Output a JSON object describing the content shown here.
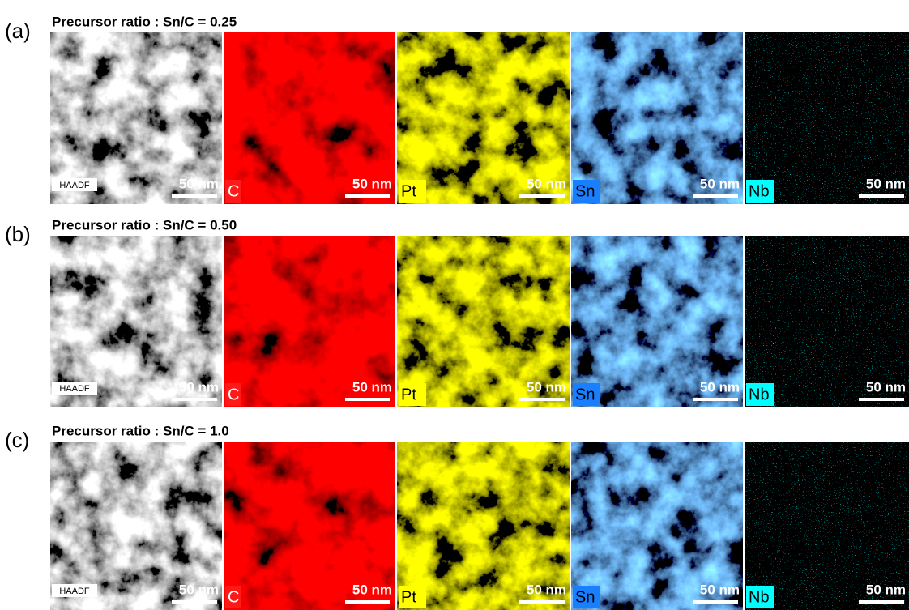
{
  "rows": [
    {
      "label": "(a)",
      "title": "Precursor ratio : Sn/C = 0.25",
      "panels": [
        {
          "label": "HAADF",
          "scale": "50 nm",
          "box_color": "#ffffff"
        },
        {
          "label": "C",
          "scale": "50 nm",
          "box_color": "#ff1a1a"
        },
        {
          "label": "Pt",
          "scale": "50 nm",
          "box_color": "#ffff00"
        },
        {
          "label": "Sn",
          "scale": "50 nm",
          "box_color": "#1a7fff"
        },
        {
          "label": "Nb",
          "scale": "50 nm",
          "box_color": "#00ffff"
        }
      ]
    },
    {
      "label": "(b)",
      "title": "Precursor ratio : Sn/C = 0.50",
      "panels": [
        {
          "label": "HAADF",
          "scale": "50 nm",
          "box_color": "#ffffff"
        },
        {
          "label": "C",
          "scale": "50 nm",
          "box_color": "#ff1a1a"
        },
        {
          "label": "Pt",
          "scale": "50 nm",
          "box_color": "#ffff00"
        },
        {
          "label": "Sn",
          "scale": "50 nm",
          "box_color": "#1a7fff"
        },
        {
          "label": "Nb",
          "scale": "50 nm",
          "box_color": "#00ffff"
        }
      ]
    },
    {
      "label": "(c)",
      "title": "Precursor ratio : Sn/C = 1.0",
      "panels": [
        {
          "label": "HAADF",
          "scale": "50 nm",
          "box_color": "#ffffff"
        },
        {
          "label": "C",
          "scale": "50 nm",
          "box_color": "#ff1a1a"
        },
        {
          "label": "Pt",
          "scale": "50 nm",
          "box_color": "#ffff00"
        },
        {
          "label": "Sn",
          "scale": "50 nm",
          "box_color": "#1a7fff"
        },
        {
          "label": "Nb",
          "scale": "50 nm",
          "box_color": "#00ffff"
        }
      ]
    }
  ]
}
